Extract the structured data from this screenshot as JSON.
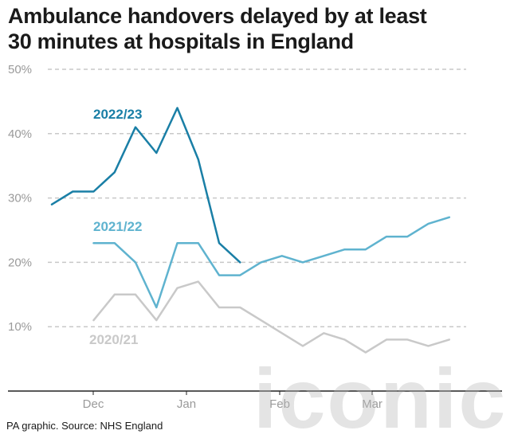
{
  "title_lines": [
    "Ambulance handovers delayed by at least",
    "30 minutes at hospitals in England"
  ],
  "source": "PA graphic. Source: NHS England",
  "watermark": "iconic",
  "colors": {
    "s2022": "#1a7fa6",
    "s2021": "#5fb3cf",
    "s2020": "#c9c9c9",
    "grid": "#c8c8c8",
    "axis": "#222222"
  },
  "chart_data": {
    "type": "line",
    "xlabels": [
      "Dec",
      "Jan",
      "Feb",
      "Mar"
    ],
    "xlabel": "",
    "ylabel": "",
    "yticks": [
      "10%",
      "20%",
      "30%",
      "40%",
      "50%"
    ],
    "ylim": [
      0,
      50
    ],
    "grid": "horizontal dashed",
    "series": [
      {
        "name": "2022/23",
        "color": "#1a7fa6",
        "start_week": 0,
        "values": [
          29,
          31,
          31,
          34,
          41,
          37,
          44,
          36,
          23,
          20
        ]
      },
      {
        "name": "2021/22",
        "color": "#5fb3cf",
        "start_week": 2,
        "values": [
          23,
          23,
          20,
          13,
          23,
          23,
          18,
          18,
          20,
          21,
          20,
          21,
          22,
          22,
          24,
          24,
          26,
          27
        ]
      },
      {
        "name": "2020/21",
        "color": "#c9c9c9",
        "start_week": 2,
        "values": [
          11,
          15,
          15,
          11,
          16,
          17,
          13,
          13,
          11,
          9,
          7,
          9,
          8,
          6,
          8,
          8,
          7,
          8
        ]
      }
    ]
  }
}
